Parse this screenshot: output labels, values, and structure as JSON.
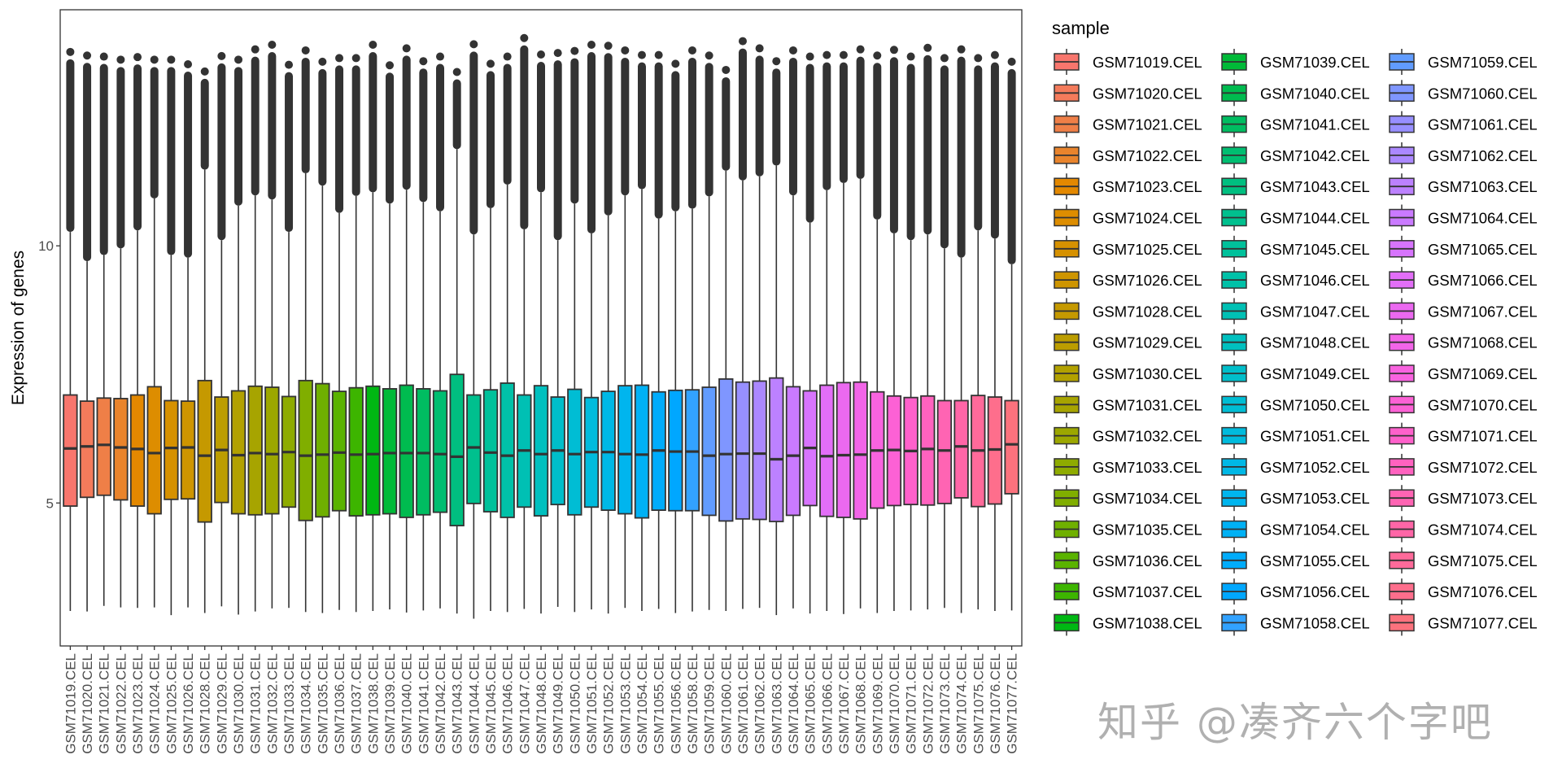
{
  "chart_data": {
    "type": "boxplot",
    "title": "",
    "xlabel": "",
    "ylabel": "Expression of genes",
    "ylim": [
      2.22,
      14.59
    ],
    "yticks": [
      5,
      10
    ],
    "grid": false,
    "legend": {
      "title": "sample",
      "placement": "right",
      "columns": 3
    },
    "palette": {
      "type": "ggplot-hue",
      "h_start": 15,
      "h_end": 375,
      "chroma": 100,
      "luminance": 65
    },
    "outline_color": "#333333",
    "outlier_color": "#333333",
    "categories": [
      "GSM71019.CEL",
      "GSM71020.CEL",
      "GSM71021.CEL",
      "GSM71022.CEL",
      "GSM71023.CEL",
      "GSM71024.CEL",
      "GSM71025.CEL",
      "GSM71026.CEL",
      "GSM71028.CEL",
      "GSM71029.CEL",
      "GSM71030.CEL",
      "GSM71031.CEL",
      "GSM71032.CEL",
      "GSM71033.CEL",
      "GSM71034.CEL",
      "GSM71035.CEL",
      "GSM71036.CEL",
      "GSM71037.CEL",
      "GSM71038.CEL",
      "GSM71039.CEL",
      "GSM71040.CEL",
      "GSM71041.CEL",
      "GSM71042.CEL",
      "GSM71043.CEL",
      "GSM71044.CEL",
      "GSM71045.CEL",
      "GSM71046.CEL",
      "GSM71047.CEL",
      "GSM71048.CEL",
      "GSM71049.CEL",
      "GSM71050.CEL",
      "GSM71051.CEL",
      "GSM71052.CEL",
      "GSM71053.CEL",
      "GSM71054.CEL",
      "GSM71055.CEL",
      "GSM71056.CEL",
      "GSM71058.CEL",
      "GSM71059.CEL",
      "GSM71060.CEL",
      "GSM71061.CEL",
      "GSM71062.CEL",
      "GSM71063.CEL",
      "GSM71064.CEL",
      "GSM71065.CEL",
      "GSM71066.CEL",
      "GSM71067.CEL",
      "GSM71068.CEL",
      "GSM71069.CEL",
      "GSM71070.CEL",
      "GSM71071.CEL",
      "GSM71072.CEL",
      "GSM71073.CEL",
      "GSM71074.CEL",
      "GSM71075.CEL",
      "GSM71076.CEL",
      "GSM71077.CEL"
    ],
    "whisker_low": [
      2.9,
      2.89,
      3.0,
      2.97,
      2.96,
      2.97,
      2.82,
      2.97,
      2.86,
      2.99,
      2.83,
      2.89,
      2.95,
      2.96,
      2.88,
      2.86,
      2.92,
      2.88,
      2.9,
      2.93,
      2.87,
      2.91,
      2.95,
      2.85,
      2.75,
      2.9,
      2.88,
      2.94,
      2.85,
      2.98,
      2.88,
      2.93,
      2.85,
      2.96,
      2.9,
      2.94,
      2.86,
      2.89,
      2.92,
      2.9,
      2.94,
      2.96,
      2.82,
      2.95,
      2.85,
      2.9,
      2.84,
      2.95,
      2.86,
      2.9,
      2.91,
      2.93,
      2.96,
      2.86,
      2.93,
      2.9,
      2.91
    ],
    "q1": [
      4.94,
      5.11,
      5.15,
      5.06,
      4.94,
      4.79,
      5.07,
      5.08,
      4.63,
      5.01,
      4.79,
      4.77,
      4.79,
      4.92,
      4.66,
      4.73,
      4.85,
      4.75,
      4.77,
      4.79,
      4.72,
      4.77,
      4.82,
      4.56,
      4.99,
      4.83,
      4.72,
      4.92,
      4.75,
      4.97,
      4.77,
      4.92,
      4.86,
      4.79,
      4.71,
      4.86,
      4.85,
      4.85,
      4.76,
      4.65,
      4.69,
      4.68,
      4.64,
      4.76,
      4.95,
      4.74,
      4.72,
      4.69,
      4.9,
      4.95,
      4.97,
      4.96,
      4.99,
      5.1,
      4.93,
      4.98,
      5.18
    ],
    "median": [
      6.06,
      6.1,
      6.13,
      6.08,
      6.05,
      5.97,
      6.07,
      6.08,
      5.92,
      6.03,
      5.93,
      5.97,
      5.95,
      5.99,
      5.92,
      5.94,
      5.98,
      5.94,
      5.95,
      5.97,
      5.97,
      5.97,
      5.95,
      5.9,
      6.08,
      5.98,
      5.92,
      6.02,
      5.95,
      6.02,
      5.95,
      5.99,
      5.99,
      5.95,
      5.94,
      6.02,
      6.0,
      6.0,
      5.92,
      5.95,
      5.96,
      5.96,
      5.85,
      5.92,
      6.07,
      5.91,
      5.93,
      5.94,
      6.02,
      6.03,
      6.01,
      6.05,
      6.02,
      6.1,
      6.02,
      6.04,
      6.14
    ],
    "q3": [
      7.1,
      6.98,
      7.04,
      7.03,
      7.1,
      7.26,
      6.99,
      6.98,
      7.38,
      7.06,
      7.18,
      7.27,
      7.25,
      7.07,
      7.38,
      7.32,
      7.17,
      7.24,
      7.27,
      7.22,
      7.29,
      7.22,
      7.18,
      7.5,
      7.1,
      7.2,
      7.33,
      7.1,
      7.28,
      7.06,
      7.21,
      7.05,
      7.17,
      7.28,
      7.29,
      7.16,
      7.19,
      7.2,
      7.25,
      7.41,
      7.35,
      7.37,
      7.43,
      7.26,
      7.18,
      7.29,
      7.34,
      7.35,
      7.16,
      7.08,
      7.05,
      7.08,
      6.99,
      6.99,
      7.09,
      7.06,
      6.99
    ],
    "whisker_high": [
      10.27,
      9.7,
      9.82,
      9.95,
      10.3,
      10.92,
      9.82,
      9.77,
      11.48,
      10.11,
      10.78,
      10.98,
      10.9,
      10.27,
      11.41,
      11.17,
      10.64,
      10.97,
      11.04,
      10.82,
      11.09,
      10.85,
      10.67,
      11.88,
      10.22,
      10.73,
      11.19,
      10.32,
      11.04,
      10.11,
      10.82,
      10.24,
      10.59,
      10.98,
      11.1,
      10.53,
      10.67,
      10.72,
      10.96,
      11.46,
      11.27,
      11.35,
      11.56,
      10.98,
      10.45,
      11.08,
      11.22,
      11.3,
      10.51,
      10.24,
      10.11,
      10.22,
      9.95,
      9.77,
      10.3,
      10.14,
      9.64
    ],
    "outlier_max": [
      13.77,
      13.7,
      13.68,
      13.62,
      13.67,
      13.62,
      13.62,
      13.53,
      13.39,
      13.69,
      13.62,
      13.82,
      13.91,
      13.52,
      13.8,
      13.58,
      13.65,
      13.65,
      13.91,
      13.51,
      13.84,
      13.59,
      13.68,
      13.38,
      13.92,
      13.54,
      13.68,
      14.04,
      13.72,
      13.75,
      13.79,
      13.91,
      13.89,
      13.8,
      13.71,
      13.71,
      13.54,
      13.8,
      13.7,
      13.42,
      13.98,
      13.84,
      13.59,
      13.8,
      13.68,
      13.71,
      13.71,
      13.82,
      13.7,
      13.81,
      13.68,
      13.85,
      13.65,
      13.82,
      13.65,
      13.71,
      13.58
    ]
  },
  "watermark": "知乎 @凑齐六个字吧"
}
